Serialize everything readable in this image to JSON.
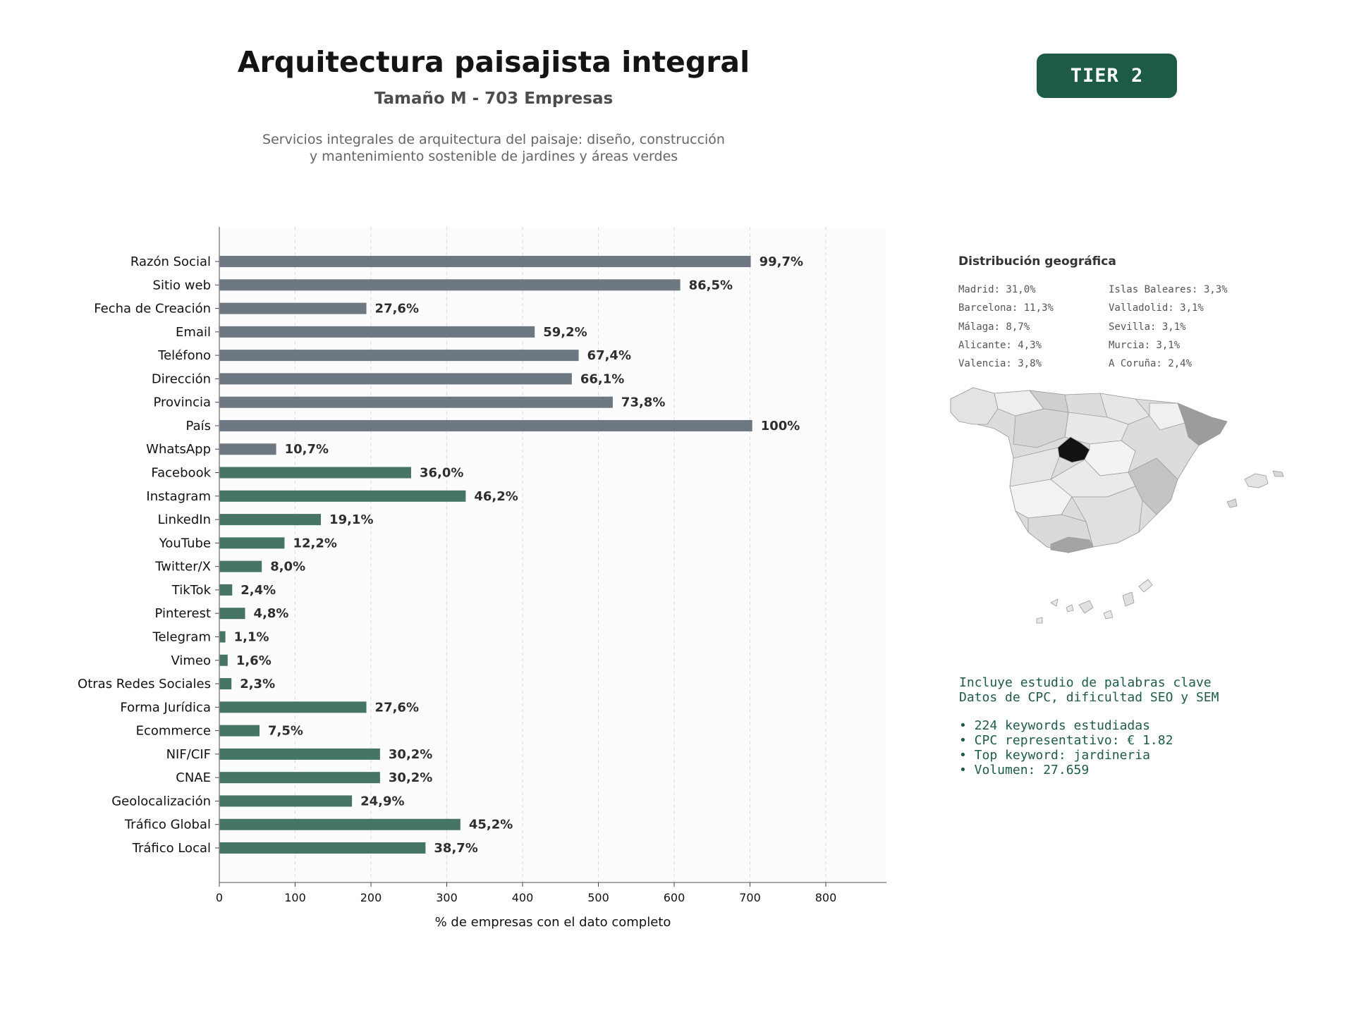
{
  "header": {
    "title": "Arquitectura paisajista integral",
    "subtitle": "Tamaño M - 703 Empresas",
    "description_line1": "Servicios integrales de arquitectura del paisaje: diseño, construcción",
    "description_line2": "y mantenimiento sostenible de jardines y áreas verdes",
    "tier_badge": "TIER 2"
  },
  "colors": {
    "gray_bar": "#6e7883",
    "green_bar": "#477563",
    "badge": "#1e5b46",
    "keyword_text": "#1e5b46"
  },
  "chart_data": {
    "type": "bar",
    "orientation": "horizontal",
    "xlabel": "% de empresas con el dato completo",
    "xlim": [
      0,
      880
    ],
    "xticks": [
      0,
      100,
      200,
      300,
      400,
      500,
      600,
      700,
      800
    ],
    "grid": "vertical dashed",
    "categories": [
      "Razón Social",
      "Sitio web",
      "Fecha de Creación",
      "Email",
      "Teléfono",
      "Dirección",
      "Provincia",
      "País",
      "WhatsApp",
      "Facebook",
      "Instagram",
      "LinkedIn",
      "YouTube",
      "Twitter/X",
      "TikTok",
      "Pinterest",
      "Telegram",
      "Vimeo",
      "Otras Redes Sociales",
      "Forma Jurídica",
      "Ecommerce",
      "NIF/CIF",
      "CNAE",
      "Geolocalización",
      "Tráfico Global",
      "Tráfico Local"
    ],
    "values": [
      701,
      608,
      194,
      416,
      474,
      465,
      519,
      703,
      75,
      253,
      325,
      134,
      86,
      56,
      17,
      34,
      8,
      11,
      16,
      194,
      53,
      212,
      212,
      175,
      318,
      272
    ],
    "labels": [
      "99,7%",
      "86,5%",
      "27,6%",
      "59,2%",
      "67,4%",
      "66,1%",
      "73,8%",
      "100%",
      "10,7%",
      "36,0%",
      "46,2%",
      "19,1%",
      "12,2%",
      "8,0%",
      "2,4%",
      "4,8%",
      "1,1%",
      "1,6%",
      "2,3%",
      "27,6%",
      "7,5%",
      "30,2%",
      "30,2%",
      "24,9%",
      "45,2%",
      "38,7%"
    ],
    "bar_groups": [
      "gray",
      "gray",
      "gray",
      "gray",
      "gray",
      "gray",
      "gray",
      "gray",
      "gray",
      "green",
      "green",
      "green",
      "green",
      "green",
      "green",
      "green",
      "green",
      "green",
      "green",
      "green",
      "green",
      "green",
      "green",
      "green",
      "green",
      "green"
    ]
  },
  "geo": {
    "title": "Distribución geográfica",
    "col1": [
      "Madrid: 31,0%",
      "Barcelona: 11,3%",
      "Málaga: 8,7%",
      "Alicante: 4,3%",
      "Valencia: 3,8%"
    ],
    "col2": [
      "Islas Baleares: 3,3%",
      "Valladolid: 3,1%",
      "Sevilla: 3,1%",
      "Murcia: 3,1%",
      "A Coruña: 2,4%"
    ]
  },
  "keywords": {
    "line1": "Incluye estudio de palabras clave",
    "line2": "Datos de CPC, dificultad SEO y SEM",
    "bullets": [
      "• 224 keywords estudiadas",
      "• CPC representativo: € 1.82",
      "• Top keyword: jardineria",
      "• Volumen: 27.659"
    ]
  }
}
